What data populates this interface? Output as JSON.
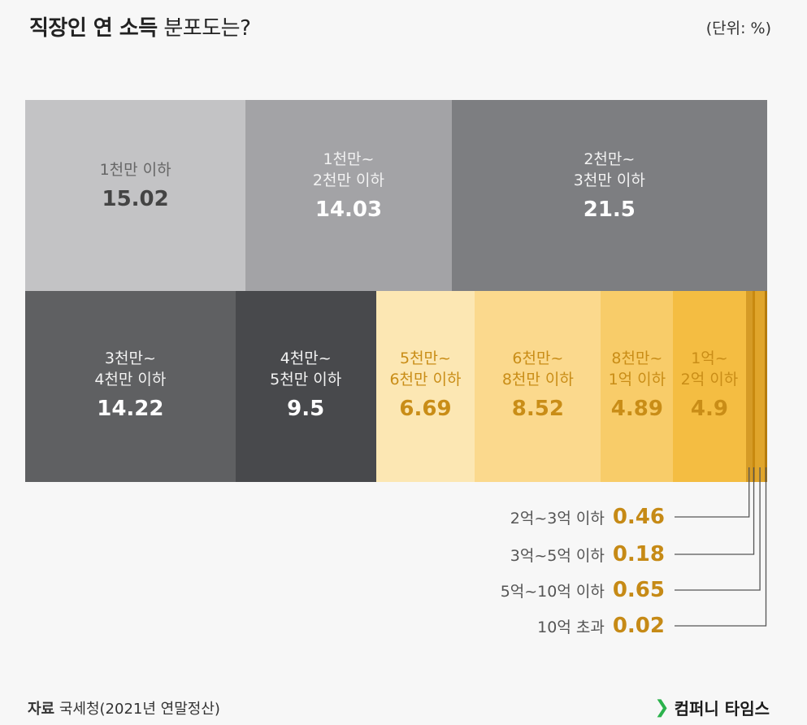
{
  "header": {
    "title_bold": "직장인 연 소득",
    "title_light": "분포도는?",
    "unit": "(단위: %)"
  },
  "chart_data": {
    "type": "treemap",
    "title": "직장인 연 소득 분포도는?",
    "unit": "%",
    "categories": [
      "1천만 이하",
      "1천만~\n2천만 이하",
      "2천만~\n3천만 이하",
      "3천만~\n4천만 이하",
      "4천만~\n5천만 이하",
      "5천만~\n6천만 이하",
      "6천만~\n8천만 이하",
      "8천만~\n1억 이하",
      "1억~\n2억 이하",
      "2억~3억 이하",
      "3억~5억 이하",
      "5억~10억 이하",
      "10억 초과"
    ],
    "values": [
      "15.02",
      "14.03",
      "21.5",
      "14.22",
      "9.5",
      "6.69",
      "8.52",
      "4.89",
      "4.9",
      "0.46",
      "0.18",
      "0.65",
      "0.02"
    ],
    "colors": [
      "#c3c3c5",
      "#a3a3a6",
      "#7d7e81",
      "#5f6062",
      "#48494c",
      "#fce7b3",
      "#fbd98d",
      "#f8cc69",
      "#f4bd42",
      "#d59b26",
      "#c8890f",
      "#e0a52b",
      "#b57b0c"
    ]
  },
  "footer": {
    "source_label": "자료",
    "source_text": "국세청(2021년 연말정산)",
    "brand": "컴퍼니 타임스",
    "brand_mark": "❯"
  }
}
